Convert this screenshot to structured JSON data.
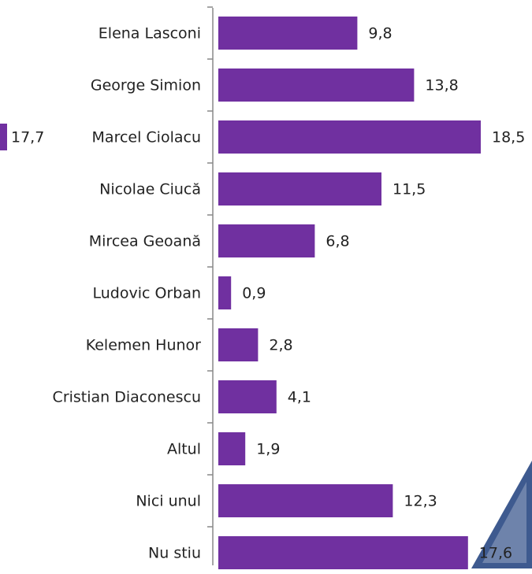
{
  "chart_data": {
    "type": "barh",
    "categories": [
      "Elena Lasconi",
      "George Simion",
      "Marcel Ciolacu",
      "Nicolae Ciucă",
      "Mircea Geoană",
      "Ludovic Orban",
      "Kelemen Hunor",
      "Cristian Diaconescu",
      "Altul",
      "Nici unul",
      "Nu stiu"
    ],
    "values": [
      9.8,
      13.8,
      18.5,
      11.5,
      6.8,
      0.9,
      2.8,
      4.1,
      1.9,
      12.3,
      17.6
    ],
    "value_labels": [
      "9,8",
      "13,8",
      "18,5",
      "11,5",
      "6,8",
      "0,9",
      "2,8",
      "4,1",
      "1,9",
      "12,3",
      "17,6"
    ],
    "color": "#7030a0",
    "xlim": [
      0,
      22
    ],
    "annotations": [
      "17,7"
    ]
  }
}
